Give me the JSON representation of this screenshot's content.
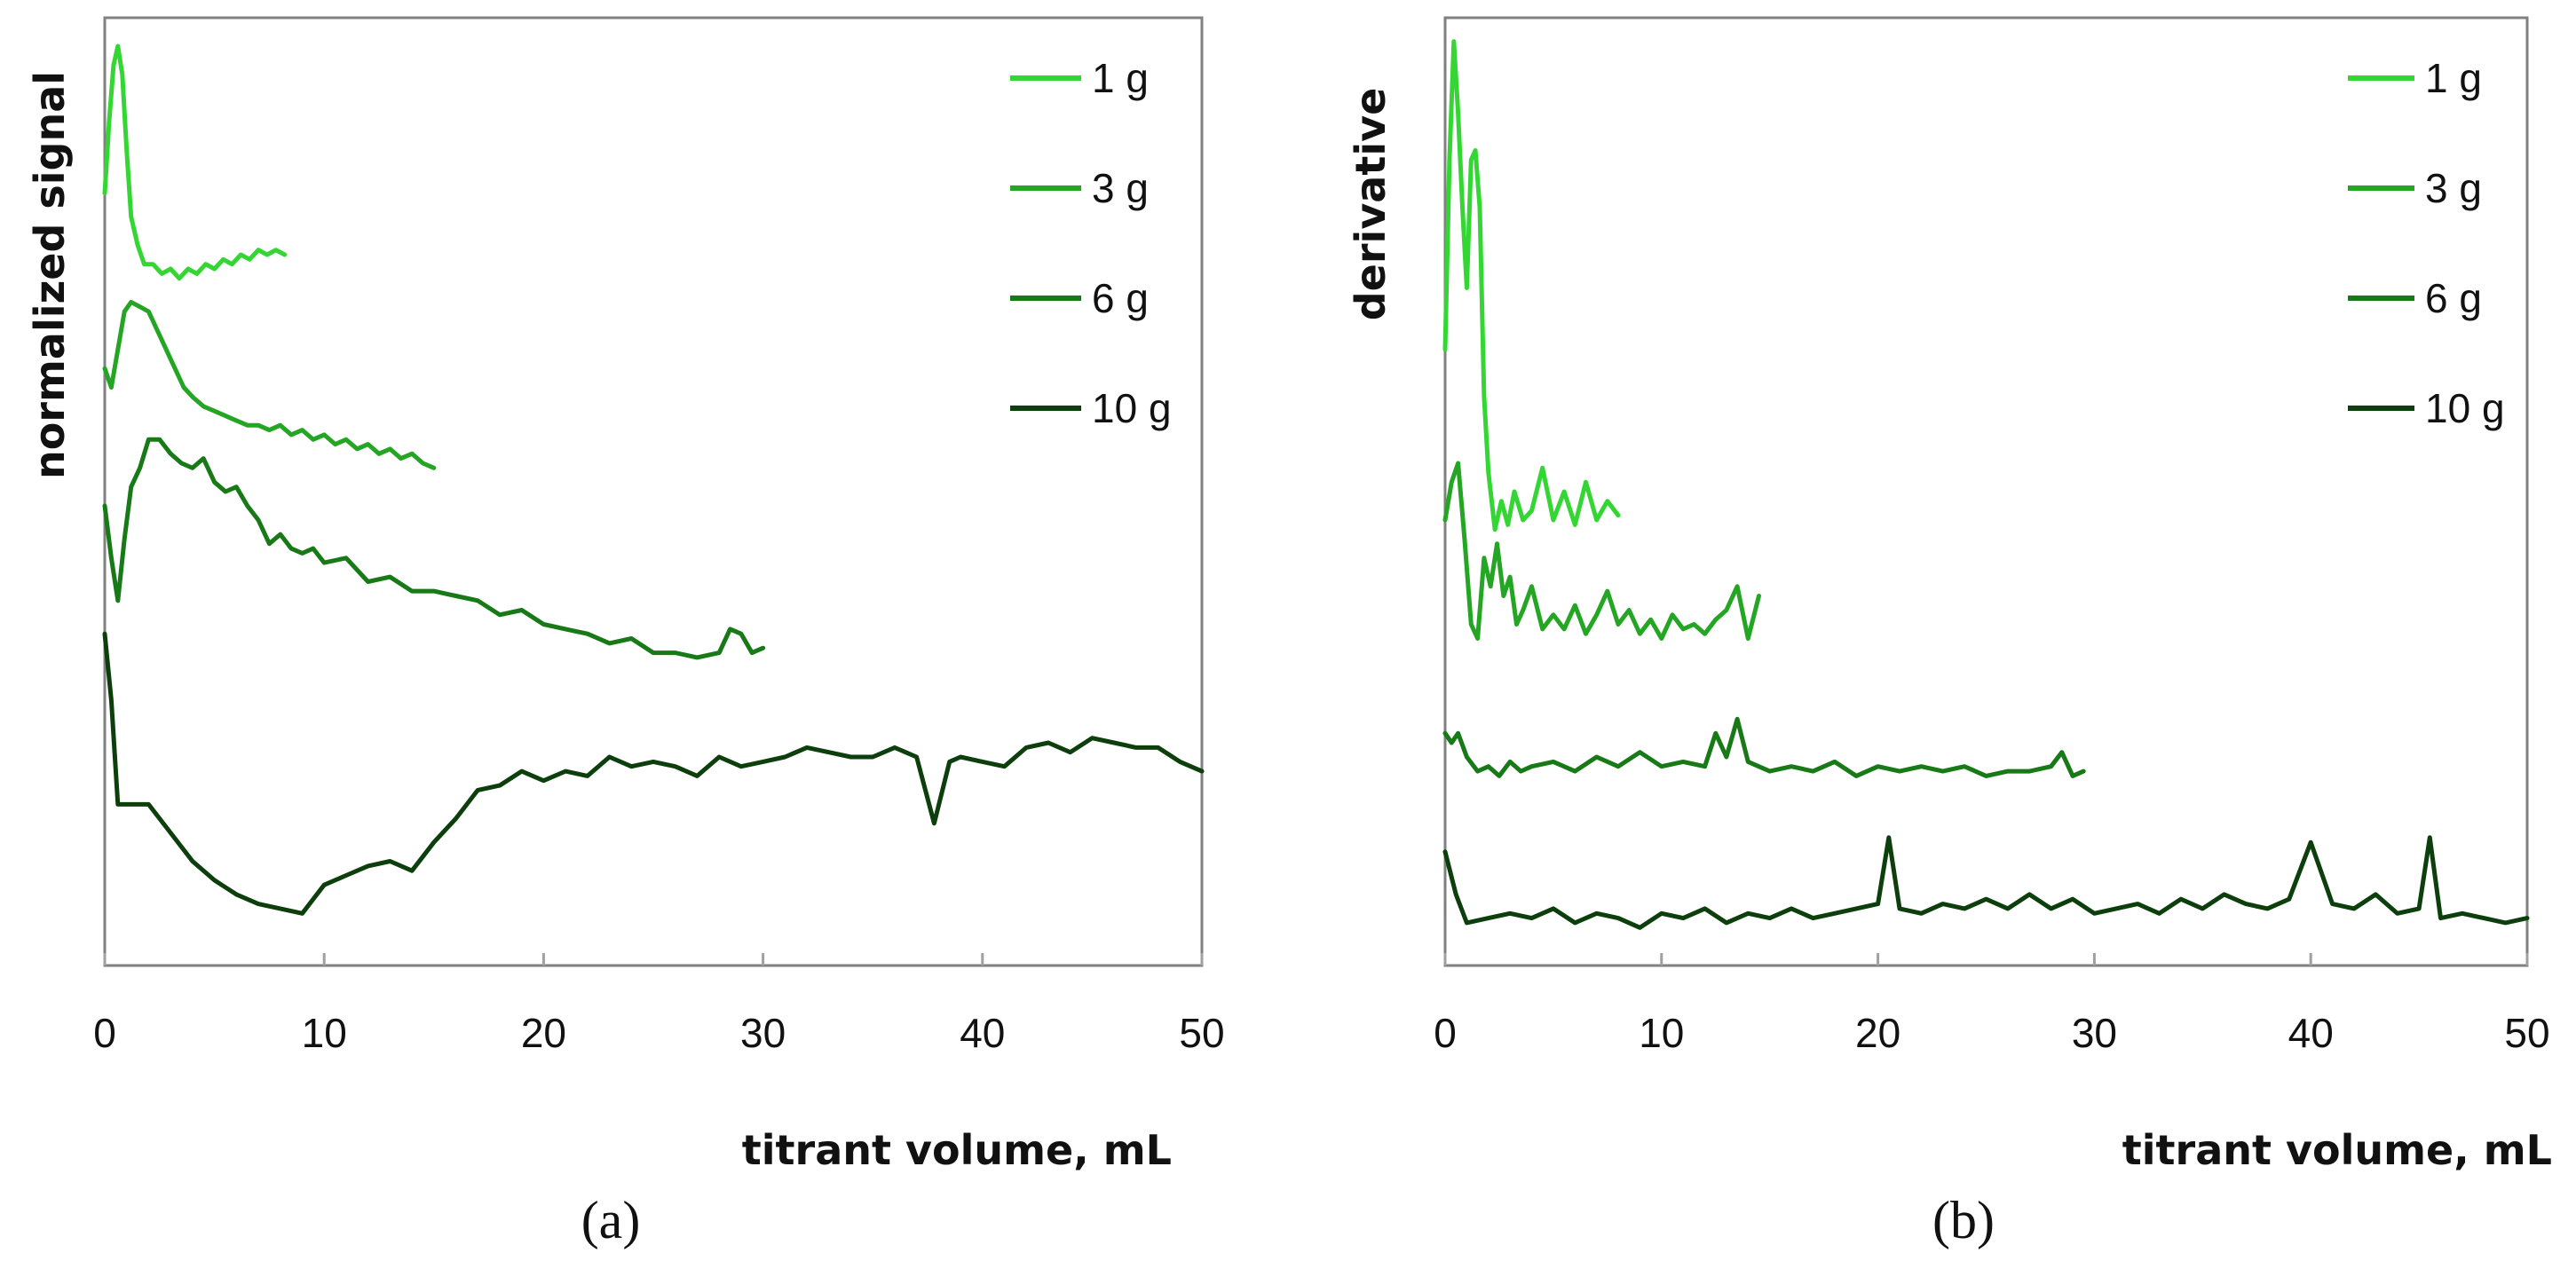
{
  "chart_data": [
    {
      "panel": "a",
      "type": "line",
      "panel_label": "(a)",
      "xlabel": "titrant volume, mL",
      "ylabel": "normalized signal",
      "xlim": [
        0,
        50
      ],
      "xticks": [
        "0",
        "10",
        "20",
        "30",
        "40",
        "50"
      ],
      "ylim": [
        0,
        10
      ],
      "y_ticks_shown": false,
      "legend": "top-right",
      "series": [
        {
          "name": "1 g",
          "color": "#33d633",
          "x": [
            0,
            0.2,
            0.4,
            0.6,
            0.8,
            1.0,
            1.2,
            1.5,
            1.8,
            2.2,
            2.6,
            3.0,
            3.4,
            3.8,
            4.2,
            4.6,
            5.0,
            5.4,
            5.8,
            6.2,
            6.6,
            7.0,
            7.4,
            7.8,
            8.2
          ],
          "y": [
            8.15,
            8.9,
            9.5,
            9.7,
            9.4,
            8.6,
            7.9,
            7.6,
            7.4,
            7.4,
            7.3,
            7.35,
            7.25,
            7.35,
            7.3,
            7.4,
            7.35,
            7.45,
            7.4,
            7.5,
            7.45,
            7.55,
            7.5,
            7.55,
            7.5
          ]
        },
        {
          "name": "3 g",
          "color": "#24a624",
          "x": [
            0,
            0.3,
            0.6,
            0.9,
            1.2,
            1.6,
            2.0,
            2.4,
            2.8,
            3.2,
            3.6,
            4.0,
            4.5,
            5.0,
            5.5,
            6.0,
            6.5,
            7.0,
            7.5,
            8.0,
            8.5,
            9.0,
            9.5,
            10.0,
            10.5,
            11.0,
            11.5,
            12.0,
            12.5,
            13.0,
            13.5,
            14.0,
            14.5,
            15.0
          ],
          "y": [
            6.3,
            6.1,
            6.5,
            6.9,
            7.0,
            6.95,
            6.9,
            6.7,
            6.5,
            6.3,
            6.1,
            6.0,
            5.9,
            5.85,
            5.8,
            5.75,
            5.7,
            5.7,
            5.65,
            5.7,
            5.6,
            5.65,
            5.55,
            5.6,
            5.5,
            5.55,
            5.45,
            5.5,
            5.4,
            5.45,
            5.35,
            5.4,
            5.3,
            5.25
          ]
        },
        {
          "name": "6 g",
          "color": "#177a17",
          "x": [
            0,
            0.3,
            0.6,
            0.9,
            1.2,
            1.6,
            2.0,
            2.5,
            3.0,
            3.5,
            4.0,
            4.5,
            5.0,
            5.5,
            6.0,
            6.5,
            7.0,
            7.5,
            8.0,
            8.5,
            9.0,
            9.5,
            10.0,
            11.0,
            12.0,
            13.0,
            14.0,
            15.0,
            16.0,
            17.0,
            18.0,
            19.0,
            20.0,
            21.0,
            22.0,
            23.0,
            24.0,
            25.0,
            26.0,
            27.0,
            28.0,
            28.5,
            29.0,
            29.5,
            30.0
          ],
          "y": [
            4.85,
            4.3,
            3.85,
            4.5,
            5.05,
            5.25,
            5.55,
            5.55,
            5.4,
            5.3,
            5.25,
            5.35,
            5.1,
            5.0,
            5.05,
            4.85,
            4.7,
            4.45,
            4.55,
            4.4,
            4.35,
            4.4,
            4.25,
            4.3,
            4.05,
            4.1,
            3.95,
            3.95,
            3.9,
            3.85,
            3.7,
            3.75,
            3.6,
            3.55,
            3.5,
            3.4,
            3.45,
            3.3,
            3.3,
            3.25,
            3.3,
            3.55,
            3.5,
            3.3,
            3.35
          ]
        },
        {
          "name": "10 g",
          "color": "#0d3f0d",
          "x": [
            0,
            0.3,
            0.6,
            1,
            2,
            3,
            4,
            5,
            6,
            7,
            8,
            9,
            10,
            11,
            12,
            13,
            14,
            15,
            16,
            17,
            18,
            19,
            20,
            21,
            22,
            23,
            24,
            25,
            26,
            27,
            28,
            29,
            30,
            31,
            32,
            33,
            34,
            35,
            36,
            37,
            37.8,
            38.5,
            39,
            40,
            41,
            42,
            43,
            44,
            45,
            46,
            47,
            48,
            49,
            50
          ],
          "y": [
            3.5,
            2.8,
            1.7,
            1.7,
            1.7,
            1.4,
            1.1,
            0.9,
            0.75,
            0.65,
            0.6,
            0.55,
            0.85,
            0.95,
            1.05,
            1.1,
            1.0,
            1.3,
            1.55,
            1.85,
            1.9,
            2.05,
            1.95,
            2.05,
            2.0,
            2.2,
            2.1,
            2.15,
            2.1,
            2.0,
            2.2,
            2.1,
            2.15,
            2.2,
            2.3,
            2.25,
            2.2,
            2.2,
            2.3,
            2.2,
            1.5,
            2.15,
            2.2,
            2.15,
            2.1,
            2.3,
            2.35,
            2.25,
            2.4,
            2.35,
            2.3,
            2.3,
            2.15,
            2.05
          ]
        }
      ]
    },
    {
      "panel": "b",
      "type": "line",
      "panel_label": "(b)",
      "xlabel": "titrant volume, mL",
      "ylabel": "derivative",
      "xlim": [
        0,
        50
      ],
      "xticks": [
        "0",
        "10",
        "20",
        "30",
        "40",
        "50"
      ],
      "ylim": [
        0,
        10
      ],
      "y_ticks_shown": false,
      "legend": "top-right",
      "series": [
        {
          "name": "1 g",
          "color": "#33d633",
          "x": [
            0,
            0.2,
            0.4,
            0.6,
            0.8,
            1.0,
            1.2,
            1.4,
            1.6,
            1.8,
            2.0,
            2.3,
            2.6,
            2.9,
            3.2,
            3.6,
            4.0,
            4.5,
            5.0,
            5.5,
            6.0,
            6.5,
            7.0,
            7.5,
            8.0
          ],
          "y": [
            6.5,
            8.5,
            9.75,
            9.0,
            8.0,
            7.15,
            8.5,
            8.6,
            8.0,
            6.0,
            5.2,
            4.6,
            4.9,
            4.65,
            5.0,
            4.7,
            4.8,
            5.25,
            4.7,
            5.0,
            4.65,
            5.1,
            4.7,
            4.9,
            4.75
          ]
        },
        {
          "name": "3 g",
          "color": "#24a624",
          "x": [
            0,
            0.3,
            0.6,
            0.9,
            1.2,
            1.5,
            1.8,
            2.1,
            2.4,
            2.7,
            3.0,
            3.3,
            3.6,
            4.0,
            4.5,
            5.0,
            5.5,
            6.0,
            6.5,
            7.0,
            7.5,
            8.0,
            8.5,
            9.0,
            9.5,
            10.0,
            10.5,
            11.0,
            11.5,
            12.0,
            12.5,
            13.0,
            13.5,
            14.0,
            14.5
          ],
          "y": [
            4.7,
            5.1,
            5.3,
            4.5,
            3.6,
            3.45,
            4.3,
            4.0,
            4.45,
            3.9,
            4.1,
            3.6,
            3.75,
            4.0,
            3.55,
            3.7,
            3.55,
            3.8,
            3.5,
            3.7,
            3.95,
            3.6,
            3.75,
            3.5,
            3.65,
            3.45,
            3.7,
            3.55,
            3.6,
            3.5,
            3.65,
            3.75,
            4.0,
            3.45,
            3.9
          ]
        },
        {
          "name": "6 g",
          "color": "#177a17",
          "x": [
            0,
            0.3,
            0.6,
            1.0,
            1.5,
            2.0,
            2.5,
            3.0,
            3.5,
            4.0,
            5.0,
            6.0,
            7.0,
            8.0,
            9.0,
            10.0,
            11.0,
            12.0,
            12.5,
            13.0,
            13.5,
            14.0,
            15.0,
            16.0,
            17.0,
            18.0,
            19.0,
            20.0,
            21.0,
            22.0,
            23.0,
            24.0,
            25.0,
            26.0,
            27.0,
            28.0,
            28.5,
            29.0,
            29.5
          ],
          "y": [
            2.45,
            2.35,
            2.45,
            2.2,
            2.05,
            2.1,
            2.0,
            2.15,
            2.05,
            2.1,
            2.15,
            2.05,
            2.2,
            2.1,
            2.25,
            2.1,
            2.15,
            2.1,
            2.45,
            2.2,
            2.6,
            2.15,
            2.05,
            2.1,
            2.05,
            2.15,
            2.0,
            2.1,
            2.05,
            2.1,
            2.05,
            2.1,
            2.0,
            2.05,
            2.05,
            2.1,
            2.25,
            2.0,
            2.05
          ]
        },
        {
          "name": "10 g",
          "color": "#0d3f0d",
          "x": [
            0,
            0.5,
            1,
            2,
            3,
            4,
            5,
            6,
            7,
            8,
            9,
            10,
            11,
            12,
            13,
            14,
            15,
            16,
            17,
            18,
            19,
            20,
            20.5,
            21,
            22,
            23,
            24,
            25,
            26,
            27,
            28,
            29,
            30,
            31,
            32,
            33,
            34,
            35,
            36,
            37,
            38,
            39,
            40,
            41,
            42,
            43,
            44,
            45,
            45.5,
            46,
            47,
            48,
            49,
            50
          ],
          "y": [
            1.2,
            0.75,
            0.45,
            0.5,
            0.55,
            0.5,
            0.6,
            0.45,
            0.55,
            0.5,
            0.4,
            0.55,
            0.5,
            0.6,
            0.45,
            0.55,
            0.5,
            0.6,
            0.5,
            0.55,
            0.6,
            0.65,
            1.35,
            0.6,
            0.55,
            0.65,
            0.6,
            0.7,
            0.6,
            0.75,
            0.6,
            0.7,
            0.55,
            0.6,
            0.65,
            0.55,
            0.7,
            0.6,
            0.75,
            0.65,
            0.6,
            0.7,
            1.3,
            0.65,
            0.6,
            0.75,
            0.55,
            0.6,
            1.35,
            0.5,
            0.55,
            0.5,
            0.45,
            0.5
          ]
        }
      ]
    }
  ]
}
